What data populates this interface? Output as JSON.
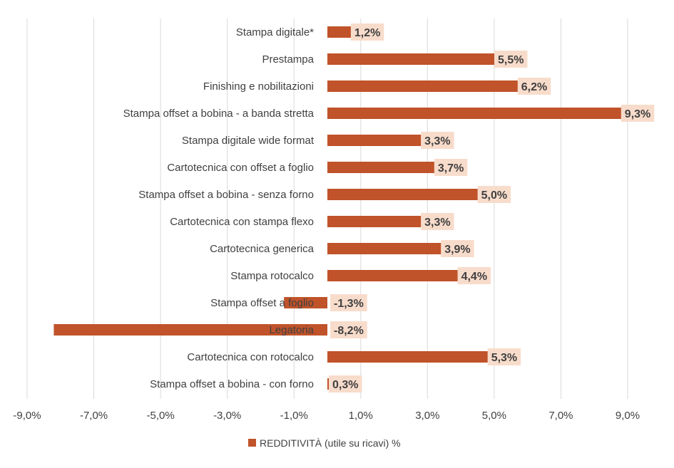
{
  "colors": {
    "bar": "#C0532A",
    "label_bg": "#F8DCCB",
    "grid": "#D9D9D9",
    "text": "#404040"
  },
  "chart_data": {
    "type": "bar",
    "orientation": "horizontal",
    "categories": [
      "Stampa digitale*",
      "Prestampa",
      "Finishing e nobilitazioni",
      "Stampa offset a bobina - a banda stretta",
      "Stampa digitale wide format",
      "Cartotecnica con offset a foglio",
      "Stampa offset a bobina - senza forno",
      "Cartotecnica con stampa flexo",
      "Cartotecnica generica",
      "Stampa rotocalco",
      "Stampa offset a foglio",
      "Legatoria",
      "Cartotecnica con rotocalco",
      "Stampa offset a bobina - con forno"
    ],
    "series": [
      {
        "name": "REDDITIVITÀ (utile su ricavi) %",
        "values": [
          1.2,
          5.5,
          6.2,
          9.3,
          3.3,
          3.7,
          5.0,
          3.3,
          3.9,
          4.4,
          -1.3,
          -8.2,
          5.3,
          0.3
        ],
        "labels": [
          "1,2%",
          "5,5%",
          "6,2%",
          "9,3%",
          "3,3%",
          "3,7%",
          "5,0%",
          "3,3%",
          "3,9%",
          "4,4%",
          "-1,3%",
          "-8,2%",
          "5,3%",
          "0,3%"
        ]
      }
    ],
    "xlim": [
      -9.0,
      9.0
    ],
    "ticks": [
      -9.0,
      -7.0,
      -5.0,
      -3.0,
      -1.0,
      1.0,
      3.0,
      5.0,
      7.0,
      9.0
    ],
    "tick_labels": [
      "-9,0%",
      "-7,0%",
      "-5,0%",
      "-3,0%",
      "-1,0%",
      "1,0%",
      "3,0%",
      "5,0%",
      "7,0%",
      "9,0%"
    ],
    "grid": true,
    "legend_position": "bottom"
  }
}
